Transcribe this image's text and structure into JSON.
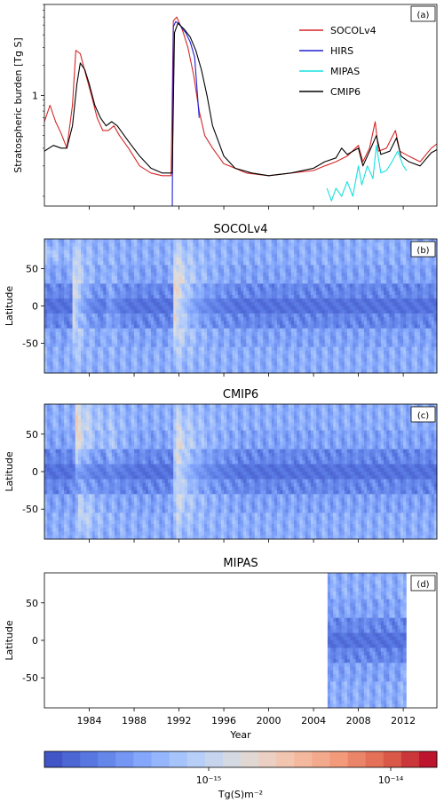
{
  "colors": {
    "socolv4": "#d62728",
    "hirs": "#1f1fd6",
    "mipas": "#17e0e0",
    "cmip6": "#000000"
  },
  "colorbar": {
    "label": "Tg(S)m⁻²",
    "ticks": [
      "10⁻¹⁵",
      "10⁻¹⁴"
    ],
    "stops": [
      "#3b4cc0",
      "#5b7be3",
      "#84a7fc",
      "#b3cdfb",
      "#dddddd",
      "#f4c3ab",
      "#f39a7b",
      "#de604b",
      "#b40426"
    ]
  },
  "chart_data": [
    {
      "type": "line",
      "panel_tag": "(a)",
      "title": "",
      "ylabel": "Stratospheric burden [Tg S]",
      "yscale": "log",
      "ylim": [
        0.08,
        8
      ],
      "xlim": [
        1980,
        2015
      ],
      "yticks": [
        {
          "value": 1,
          "label": "1"
        }
      ],
      "legend_position": "top-right",
      "series": [
        {
          "name": "SOCOLv4",
          "color_key": "socolv4",
          "points": [
            [
              1980,
              0.55
            ],
            [
              1980.5,
              0.8
            ],
            [
              1981,
              0.55
            ],
            [
              1981.5,
              0.42
            ],
            [
              1982,
              0.3
            ],
            [
              1982.5,
              0.8
            ],
            [
              1982.8,
              2.8
            ],
            [
              1983.2,
              2.6
            ],
            [
              1983.7,
              1.6
            ],
            [
              1984.2,
              1.0
            ],
            [
              1984.7,
              0.6
            ],
            [
              1985.2,
              0.45
            ],
            [
              1985.7,
              0.45
            ],
            [
              1986.2,
              0.5
            ],
            [
              1986.7,
              0.4
            ],
            [
              1987.5,
              0.3
            ],
            [
              1988.5,
              0.2
            ],
            [
              1989.5,
              0.17
            ],
            [
              1990.5,
              0.16
            ],
            [
              1991.3,
              0.16
            ],
            [
              1991.5,
              5.5
            ],
            [
              1991.8,
              6.0
            ],
            [
              1992.3,
              4.5
            ],
            [
              1992.8,
              3.0
            ],
            [
              1993.3,
              1.6
            ],
            [
              1993.8,
              0.7
            ],
            [
              1994.3,
              0.4
            ],
            [
              1995,
              0.3
            ],
            [
              1996,
              0.21
            ],
            [
              1997,
              0.19
            ],
            [
              1998,
              0.17
            ],
            [
              2000,
              0.16
            ],
            [
              2002,
              0.17
            ],
            [
              2004,
              0.18
            ],
            [
              2005,
              0.2
            ],
            [
              2006,
              0.22
            ],
            [
              2007,
              0.25
            ],
            [
              2008,
              0.32
            ],
            [
              2008.4,
              0.22
            ],
            [
              2009,
              0.3
            ],
            [
              2009.5,
              0.55
            ],
            [
              2009.8,
              0.28
            ],
            [
              2010.5,
              0.3
            ],
            [
              2011.3,
              0.45
            ],
            [
              2011.7,
              0.28
            ],
            [
              2012.5,
              0.25
            ],
            [
              2013.5,
              0.22
            ],
            [
              2014.5,
              0.3
            ],
            [
              2015,
              0.33
            ]
          ]
        },
        {
          "name": "HIRS",
          "color_key": "hirs",
          "points": [
            [
              1991.4,
              0.08
            ],
            [
              1991.5,
              4.8
            ],
            [
              1991.7,
              5.4
            ],
            [
              1992,
              5.2
            ],
            [
              1992.3,
              4.6
            ],
            [
              1992.6,
              4.2
            ],
            [
              1993,
              3.4
            ],
            [
              1993.4,
              2.4
            ],
            [
              1993.8,
              0.6
            ]
          ]
        },
        {
          "name": "MIPAS",
          "color_key": "mipas",
          "points": [
            [
              2005.2,
              0.12
            ],
            [
              2005.6,
              0.09
            ],
            [
              2006,
              0.12
            ],
            [
              2006.5,
              0.1
            ],
            [
              2007,
              0.14
            ],
            [
              2007.5,
              0.1
            ],
            [
              2008,
              0.2
            ],
            [
              2008.3,
              0.13
            ],
            [
              2008.8,
              0.2
            ],
            [
              2009.3,
              0.15
            ],
            [
              2009.6,
              0.32
            ],
            [
              2010,
              0.17
            ],
            [
              2010.5,
              0.18
            ],
            [
              2011,
              0.22
            ],
            [
              2011.5,
              0.28
            ],
            [
              2012,
              0.2
            ],
            [
              2012.3,
              0.18
            ]
          ]
        },
        {
          "name": "CMIP6",
          "color_key": "cmip6",
          "points": [
            [
              1980,
              0.28
            ],
            [
              1980.8,
              0.32
            ],
            [
              1981.5,
              0.3
            ],
            [
              1982,
              0.3
            ],
            [
              1982.5,
              0.5
            ],
            [
              1982.9,
              1.3
            ],
            [
              1983.2,
              2.1
            ],
            [
              1983.6,
              1.8
            ],
            [
              1984,
              1.3
            ],
            [
              1984.5,
              0.8
            ],
            [
              1985,
              0.6
            ],
            [
              1985.5,
              0.5
            ],
            [
              1986,
              0.55
            ],
            [
              1986.5,
              0.5
            ],
            [
              1987.5,
              0.35
            ],
            [
              1988.5,
              0.25
            ],
            [
              1989.5,
              0.19
            ],
            [
              1990.5,
              0.17
            ],
            [
              1991.4,
              0.17
            ],
            [
              1991.6,
              4.2
            ],
            [
              1991.9,
              5.2
            ],
            [
              1992.5,
              4.5
            ],
            [
              1993,
              3.8
            ],
            [
              1993.5,
              2.8
            ],
            [
              1994,
              1.8
            ],
            [
              1994.5,
              1.0
            ],
            [
              1995,
              0.5
            ],
            [
              1996,
              0.25
            ],
            [
              1997,
              0.19
            ],
            [
              1998.5,
              0.17
            ],
            [
              2000,
              0.16
            ],
            [
              2002,
              0.17
            ],
            [
              2004,
              0.19
            ],
            [
              2005,
              0.22
            ],
            [
              2006,
              0.24
            ],
            [
              2006.5,
              0.3
            ],
            [
              2007,
              0.26
            ],
            [
              2008,
              0.3
            ],
            [
              2008.4,
              0.2
            ],
            [
              2009,
              0.28
            ],
            [
              2009.6,
              0.4
            ],
            [
              2010,
              0.26
            ],
            [
              2010.8,
              0.28
            ],
            [
              2011.4,
              0.38
            ],
            [
              2011.8,
              0.25
            ],
            [
              2012.5,
              0.22
            ],
            [
              2013.5,
              0.2
            ],
            [
              2014.5,
              0.27
            ],
            [
              2015,
              0.29
            ]
          ]
        }
      ]
    },
    {
      "type": "heatmap",
      "panel_tag": "(b)",
      "title": "SOCOLv4",
      "ylabel": "Latitude",
      "xlim": [
        1980,
        2015
      ],
      "ylim": [
        -90,
        90
      ],
      "yticks": [
        -50,
        0,
        50
      ],
      "plumes": [
        [
          1982.4,
          1983.4,
          3,
          65,
          8
        ],
        [
          1991.4,
          1993.0,
          3.6,
          65,
          8
        ],
        [
          1985.5,
          1986.2,
          1.1,
          50,
          0
        ],
        [
          2009.3,
          2009.8,
          2.6,
          -2,
          80
        ],
        [
          2008.0,
          2008.5,
          0.9,
          -2,
          80
        ],
        [
          1980,
          1981.2,
          1.2,
          10,
          70
        ]
      ]
    },
    {
      "type": "heatmap",
      "panel_tag": "(c)",
      "title": "CMIP6",
      "ylabel": "Latitude",
      "xlim": [
        1980,
        2015
      ],
      "ylim": [
        -90,
        90
      ],
      "yticks": [
        -50,
        0,
        50
      ],
      "plumes": [
        [
          1982.6,
          1984.0,
          2.6,
          60,
          50
        ],
        [
          1983.0,
          1984.2,
          1.7,
          30,
          -55
        ],
        [
          1991.5,
          1993.3,
          3.1,
          70,
          5
        ],
        [
          1985.5,
          1986.5,
          0.9,
          40,
          30
        ]
      ]
    },
    {
      "type": "heatmap",
      "panel_tag": "(d)",
      "title": "MIPAS",
      "ylabel": "Latitude",
      "xlabel": "Year",
      "xlim": [
        1980,
        2015
      ],
      "ylim": [
        -90,
        90
      ],
      "yticks": [
        -50,
        0,
        50
      ],
      "xticks": [
        1984,
        1988,
        1992,
        1996,
        2000,
        2004,
        2008,
        2012
      ],
      "data_range": [
        2005.2,
        2012.3
      ],
      "plumes": [
        [
          2009.3,
          2009.7,
          1.6,
          -2,
          80
        ]
      ]
    }
  ]
}
